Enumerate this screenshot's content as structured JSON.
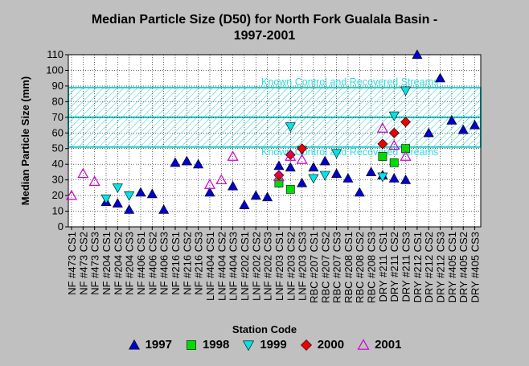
{
  "chart_data": {
    "type": "scatter",
    "title_line1": "Median Particle Size (D50) for North Fork Gualala Basin -",
    "title_line2": "1997-2001",
    "xlabel": "Station Code",
    "ylabel": "Median Particle Size (mm)",
    "ylim": [
      0,
      110
    ],
    "yticks": [
      0,
      10,
      20,
      30,
      40,
      50,
      60,
      70,
      80,
      90,
      100,
      110
    ],
    "grid": true,
    "legend_position": "bottom",
    "categories": [
      "NF #473 CS1",
      "NF #473 CS2",
      "NF #473 CS3",
      "NF #204 CS1",
      "NF #204 CS2",
      "NF #204 CS3",
      "NF #406 CS1",
      "NF #406 CS2",
      "NF #406 CS3",
      "NF #216 CS1",
      "NF #216 CS2",
      "NF #216 CS3",
      "LNF #404 CS1",
      "LNF #404 CS2",
      "LNF #404 CS3",
      "LNF #202 CS1",
      "LNF #202 CS2",
      "LNF #202 CS3",
      "LNF #203 CS1",
      "LNF #203 CS2",
      "LNF #203 CS3",
      "RBC #207 CS1",
      "RBC #207 CS2",
      "RBC #207 CS3",
      "RBC #208 CS1",
      "RBC #208 CS2",
      "RBC #208 CS3",
      "DRY #211 CS1",
      "DRY #211 CS2",
      "DRY #211 CS3",
      "DRY #212 CS1",
      "DRY #212 CS2",
      "DRY #212 CS3",
      "DRY #405 CS1",
      "DRY #405 CS2",
      "DRY #405 CS3"
    ],
    "bands": [
      {
        "label": "Known Control and Recovered Streams",
        "ymin": 70,
        "ymax": 89
      },
      {
        "label": "Known Control and Recovered Streams",
        "ymin": 51,
        "ymax": 70
      }
    ],
    "series": [
      {
        "name": "1997",
        "color": "#0000cc",
        "marker": "triangle-up",
        "points": [
          [
            3,
            16
          ],
          [
            4,
            15
          ],
          [
            5,
            11
          ],
          [
            6,
            22
          ],
          [
            7,
            21
          ],
          [
            8,
            11
          ],
          [
            9,
            41
          ],
          [
            10,
            42
          ],
          [
            11,
            40
          ],
          [
            12,
            22
          ],
          [
            14,
            26
          ],
          [
            15,
            14
          ],
          [
            16,
            20
          ],
          [
            17,
            19
          ],
          [
            18,
            39
          ],
          [
            19,
            38
          ],
          [
            20,
            28
          ],
          [
            21,
            38
          ],
          [
            22,
            42
          ],
          [
            23,
            34
          ],
          [
            24,
            31
          ],
          [
            25,
            22
          ],
          [
            26,
            35
          ],
          [
            27,
            33
          ],
          [
            28,
            31
          ],
          [
            29,
            30
          ],
          [
            30,
            110
          ],
          [
            31,
            60
          ],
          [
            32,
            95
          ],
          [
            33,
            68
          ],
          [
            34,
            62
          ],
          [
            35,
            65
          ]
        ]
      },
      {
        "name": "1998",
        "color": "#00dd00",
        "marker": "square",
        "points": [
          [
            18,
            28
          ],
          [
            19,
            24
          ],
          [
            27,
            45
          ],
          [
            28,
            41
          ],
          [
            29,
            50
          ]
        ]
      },
      {
        "name": "1999",
        "color": "#00e5e5",
        "marker": "triangle-down",
        "points": [
          [
            3,
            18
          ],
          [
            4,
            25
          ],
          [
            5,
            20
          ],
          [
            19,
            64
          ],
          [
            20,
            49
          ],
          [
            21,
            31
          ],
          [
            22,
            33
          ],
          [
            23,
            47
          ],
          [
            27,
            32
          ],
          [
            28,
            71
          ],
          [
            29,
            87
          ]
        ]
      },
      {
        "name": "2000",
        "color": "#ee0000",
        "marker": "diamond",
        "points": [
          [
            18,
            33
          ],
          [
            19,
            46
          ],
          [
            20,
            50
          ],
          [
            27,
            53
          ],
          [
            28,
            60
          ],
          [
            29,
            67
          ]
        ]
      },
      {
        "name": "2001",
        "color": "#cc00cc",
        "marker": "triangle-up-open",
        "points": [
          [
            0,
            20
          ],
          [
            1,
            34
          ],
          [
            2,
            29
          ],
          [
            12,
            27
          ],
          [
            13,
            30
          ],
          [
            14,
            45
          ],
          [
            18,
            32
          ],
          [
            19,
            45
          ],
          [
            20,
            43
          ],
          [
            27,
            63
          ],
          [
            28,
            52
          ],
          [
            29,
            45
          ]
        ]
      }
    ]
  }
}
